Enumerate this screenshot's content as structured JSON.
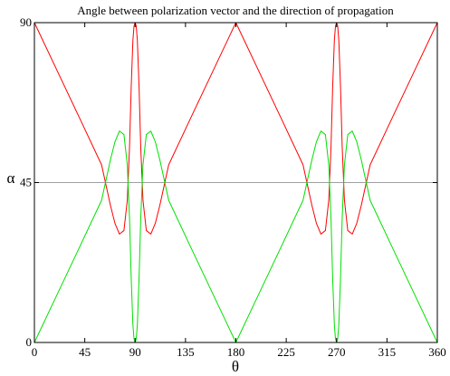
{
  "chart_data": {
    "type": "line",
    "title": "Angle between polarization vector and the direction of propagation",
    "xlabel": "θ",
    "ylabel": "α",
    "xlim": [
      0,
      360
    ],
    "ylim": [
      0,
      90
    ],
    "xticks": [
      0,
      45,
      90,
      135,
      180,
      225,
      270,
      315,
      360
    ],
    "yticks": [
      0,
      45,
      90
    ],
    "grid": false,
    "reference_lines": [
      {
        "axis": "y",
        "value": 45,
        "color": "#a0a0a0"
      },
      {
        "axis": "y",
        "value": 90,
        "color": "#a0a0a0"
      }
    ],
    "colors": {
      "series_1": "#ff0000",
      "series_2": "#00e000",
      "axes": "#000000",
      "reference": "#a0a0a0"
    },
    "series": [
      {
        "color": "#ff0000",
        "x": [
          0,
          20,
          40,
          60,
          68,
          72,
          76,
          80,
          83,
          85,
          86.5,
          88,
          89,
          90,
          91,
          92,
          93.5,
          95,
          97,
          100,
          104,
          108,
          112,
          120,
          140,
          160,
          180,
          200,
          220,
          240,
          248,
          252,
          256,
          260,
          263,
          265,
          266.5,
          268,
          269,
          270,
          271,
          272,
          273.5,
          275,
          277,
          280,
          284,
          288,
          292,
          300,
          320,
          340,
          360
        ],
        "y": [
          90,
          76.7,
          63.4,
          50,
          38.5,
          33.5,
          30.5,
          31.5,
          40,
          55,
          72,
          85,
          89,
          90,
          89,
          85,
          72,
          55,
          40,
          31.5,
          30.5,
          33.5,
          38.5,
          50,
          63.4,
          76.7,
          90,
          76.7,
          63.4,
          50,
          38.5,
          33.5,
          30.5,
          31.5,
          40,
          55,
          72,
          85,
          89,
          90,
          89,
          85,
          72,
          55,
          40,
          31.5,
          30.5,
          33.5,
          38.5,
          50,
          63.4,
          76.7,
          90
        ]
      },
      {
        "color": "#00e000",
        "x": [
          0,
          20,
          40,
          60,
          68,
          72,
          76,
          80,
          83,
          85,
          86.5,
          88,
          89,
          90,
          91,
          92,
          93.5,
          95,
          97,
          100,
          104,
          108,
          112,
          120,
          140,
          160,
          180,
          200,
          220,
          240,
          248,
          252,
          256,
          260,
          263,
          265,
          266.5,
          268,
          269,
          270,
          271,
          272,
          273.5,
          275,
          277,
          280,
          284,
          288,
          292,
          300,
          320,
          340,
          360
        ],
        "y": [
          0,
          13.3,
          26.6,
          40,
          51.5,
          56.5,
          59.5,
          58.5,
          50,
          35,
          18,
          5,
          1,
          0,
          1,
          5,
          18,
          35,
          50,
          58.5,
          59.5,
          56.5,
          51.5,
          40,
          26.6,
          13.3,
          0,
          13.3,
          26.6,
          40,
          51.5,
          56.5,
          59.5,
          58.5,
          50,
          35,
          18,
          5,
          1,
          0,
          1,
          5,
          18,
          35,
          50,
          58.5,
          59.5,
          56.5,
          51.5,
          40,
          26.6,
          13.3,
          0
        ]
      }
    ]
  }
}
